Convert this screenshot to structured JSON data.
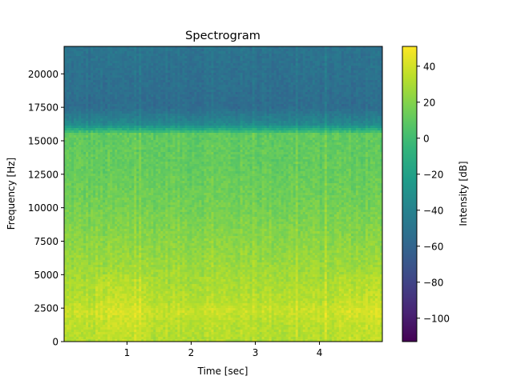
{
  "chart_data": {
    "type": "heatmap",
    "title": "Spectrogram",
    "xlabel": "Time [sec]",
    "ylabel": "Frequency [Hz]",
    "xlim": [
      0.02,
      4.98
    ],
    "ylim": [
      0,
      22050
    ],
    "xticks": [
      1,
      2,
      3,
      4
    ],
    "xtick_labels": [
      "1",
      "2",
      "3",
      "4"
    ],
    "yticks": [
      0,
      2500,
      5000,
      7500,
      10000,
      12500,
      15000,
      17500,
      20000
    ],
    "ytick_labels": [
      "0",
      "2500",
      "5000",
      "7500",
      "10000",
      "12500",
      "15000",
      "17500",
      "20000"
    ],
    "colormap": "viridis",
    "colorbar": {
      "label": "Intensity [dB]",
      "range": [
        -113,
        51
      ],
      "ticks": [
        -100,
        -80,
        -60,
        -40,
        -20,
        0,
        20,
        40
      ],
      "tick_labels": [
        "−100",
        "−80",
        "−60",
        "−40",
        "−20",
        "0",
        "20",
        "40"
      ]
    },
    "intensity_profile_db": [
      {
        "freq_hz": 0,
        "db": 32
      },
      {
        "freq_hz": 1500,
        "db": 34
      },
      {
        "freq_hz": 2300,
        "db": 38
      },
      {
        "freq_hz": 3000,
        "db": 33
      },
      {
        "freq_hz": 5000,
        "db": 28
      },
      {
        "freq_hz": 7500,
        "db": 22
      },
      {
        "freq_hz": 10000,
        "db": 16
      },
      {
        "freq_hz": 12500,
        "db": 12
      },
      {
        "freq_hz": 15500,
        "db": 10
      },
      {
        "freq_hz": 16200,
        "db": -35
      },
      {
        "freq_hz": 17500,
        "db": -55
      },
      {
        "freq_hz": 22050,
        "db": -50
      }
    ],
    "grid": false
  }
}
